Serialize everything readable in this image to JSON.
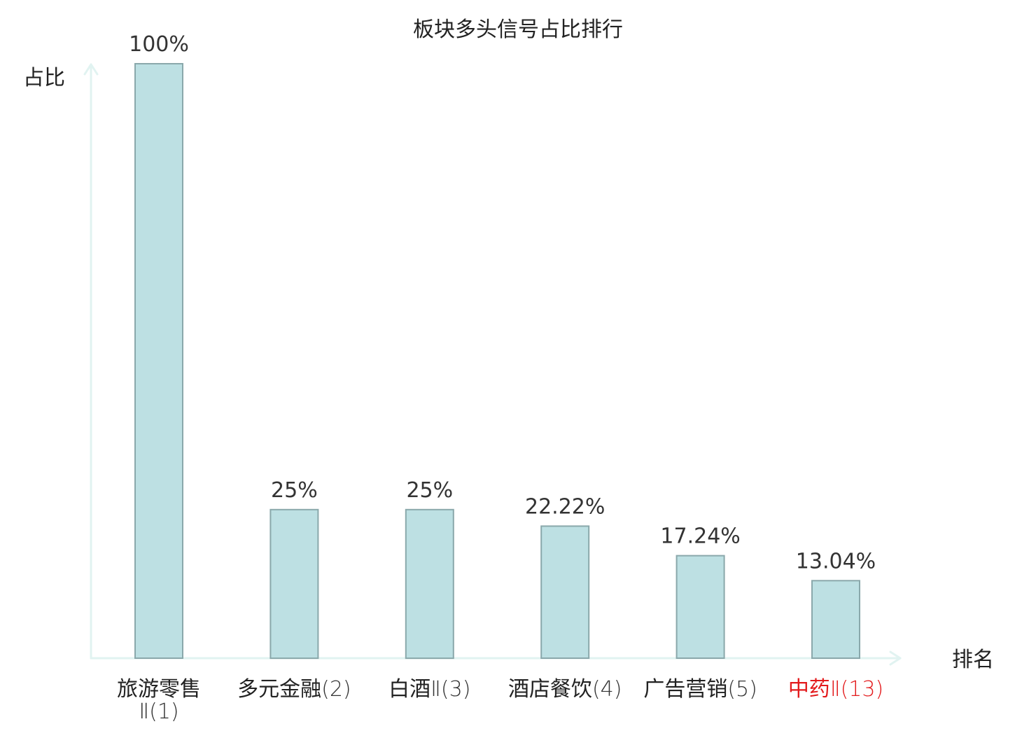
{
  "chart_data": {
    "type": "bar",
    "title": "板块多头信号占比排行",
    "ylabel": "占比",
    "xlabel": "排名",
    "ylim": [
      0,
      100
    ],
    "grid": false,
    "categories": [
      {
        "name": "旅游零售",
        "rank": "Ⅱ(1)",
        "highlight": false
      },
      {
        "name": "多元金融",
        "rank": "(2)",
        "highlight": false
      },
      {
        "name": "白酒",
        "rank": "Ⅱ(3)",
        "highlight": false
      },
      {
        "name": "酒店餐饮",
        "rank": "(4)",
        "highlight": false
      },
      {
        "name": "广告营销",
        "rank": "(5)",
        "highlight": false
      },
      {
        "name": "中药",
        "rank": "Ⅱ(13)",
        "highlight": true
      }
    ],
    "values": [
      100,
      25,
      25,
      22.22,
      17.24,
      13.04
    ],
    "value_labels": [
      "100%",
      "25%",
      "25%",
      "22.22%",
      "17.24%",
      "13.04%"
    ],
    "colors": {
      "bar_fill": "#bde0e3",
      "bar_stroke": "#8aa8ab",
      "axis": "#e1f3f1",
      "text": "#222222",
      "value_text": "#333333",
      "tick_text": "#333333",
      "highlight": "#e31a1c"
    }
  }
}
